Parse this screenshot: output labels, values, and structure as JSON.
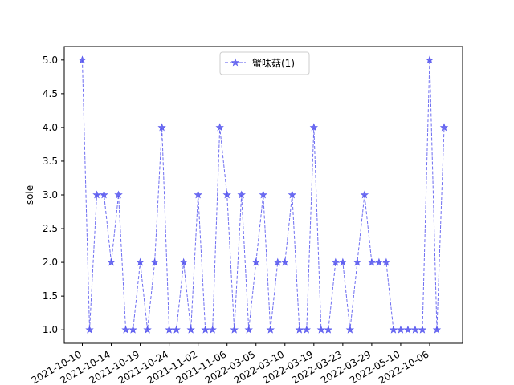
{
  "chart_data": {
    "type": "line",
    "ylabel": "sole",
    "xlabel": "",
    "title": "",
    "ylim": [
      0.8,
      5.2
    ],
    "yticks": [
      1.0,
      1.5,
      2.0,
      2.5,
      3.0,
      3.5,
      4.0,
      4.5,
      5.0
    ],
    "ytick_labels": [
      "1.0",
      "1.5",
      "2.0",
      "2.5",
      "3.0",
      "3.5",
      "4.0",
      "4.5",
      "5.0"
    ],
    "grid": false,
    "legend_position": "top-center",
    "xticks": [
      {
        "index": 0,
        "label": "2021-10-10"
      },
      {
        "index": 4,
        "label": "2021-10-14"
      },
      {
        "index": 8,
        "label": "2021-10-19"
      },
      {
        "index": 12,
        "label": "2021-10-24"
      },
      {
        "index": 16,
        "label": "2021-11-02"
      },
      {
        "index": 20,
        "label": "2021-11-06"
      },
      {
        "index": 24,
        "label": "2022-03-05"
      },
      {
        "index": 28,
        "label": "2022-03-10"
      },
      {
        "index": 32,
        "label": "2022-03-19"
      },
      {
        "index": 36,
        "label": "2022-03-23"
      },
      {
        "index": 40,
        "label": "2022-03-29"
      },
      {
        "index": 44,
        "label": "2022-05-10"
      },
      {
        "index": 48,
        "label": "2022-10-06"
      }
    ],
    "series": [
      {
        "name": "蟹味菇(1)",
        "color": "#5555ee",
        "marker": "star",
        "line_style": "dashed",
        "values": [
          5,
          1,
          3,
          3,
          2,
          3,
          1,
          1,
          2,
          1,
          2,
          4,
          1,
          1,
          2,
          1,
          3,
          1,
          1,
          4,
          3,
          1,
          3,
          1,
          2,
          3,
          1,
          2,
          2,
          3,
          1,
          1,
          4,
          1,
          1,
          2,
          2,
          1,
          2,
          3,
          2,
          2,
          2,
          1,
          1,
          1,
          1,
          1,
          5,
          1,
          4
        ]
      }
    ]
  }
}
